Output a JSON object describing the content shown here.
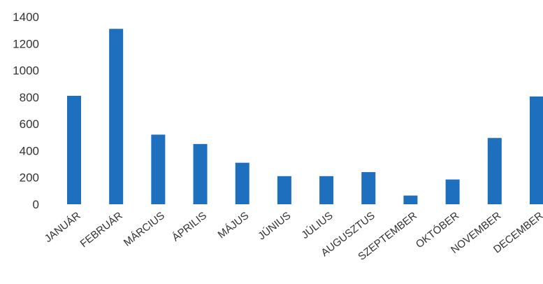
{
  "chart_data": {
    "type": "bar",
    "categories": [
      "JANUÁR",
      "FEBRUÁR",
      "MÁRCIUS",
      "ÁPRILIS",
      "MÁJUS",
      "JÚNIUS",
      "JÚLIUS",
      "AUGUSZTUS",
      "SZEPTEMBER",
      "OKTÓBER",
      "NOVEMBER",
      "DECEMBER"
    ],
    "values": [
      810,
      1310,
      520,
      450,
      310,
      210,
      210,
      240,
      65,
      185,
      495,
      805
    ],
    "title": "",
    "xlabel": "",
    "ylabel": "",
    "ylim": [
      0,
      1400
    ],
    "yticks": [
      0,
      200,
      400,
      600,
      800,
      1000,
      1200,
      1400
    ],
    "grid": false,
    "legend": "none",
    "bar_color": "#1f6fbf"
  }
}
